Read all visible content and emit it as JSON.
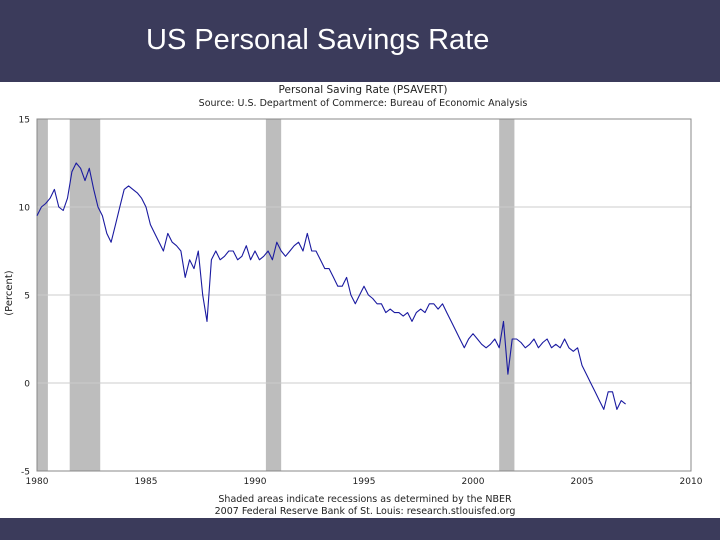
{
  "slide": {
    "title": "US Personal Savings Rate"
  },
  "colors": {
    "header_bar": "#3b3b5b",
    "background": "#b7cfe4",
    "series_line": "#1a1aa0",
    "recession_shading": "#bdbdbd",
    "grid": "#cccccc"
  },
  "chart_data": {
    "type": "line",
    "title": "Personal Saving Rate (PSAVERT)",
    "subtitle": "Source: U.S. Department of Commerce: Bureau of Economic Analysis",
    "xlabel": "",
    "ylabel": "(Percent)",
    "xlim": [
      1980,
      2010
    ],
    "ylim": [
      -5,
      15
    ],
    "x_ticks": [
      "1980",
      "1985",
      "1990",
      "1995",
      "2000",
      "2005",
      "2010"
    ],
    "y_ticks": [
      "15",
      "10",
      "5",
      "0",
      "-5"
    ],
    "grid": "horizontal",
    "recessions": [
      [
        1980.0,
        1980.5
      ],
      [
        1981.5,
        1982.9
      ],
      [
        1990.5,
        1991.2
      ],
      [
        2001.2,
        2001.9
      ]
    ],
    "footnotes": [
      "Shaded areas indicate recessions as determined by the NBER",
      "2007 Federal Reserve Bank of St. Louis: research.stlouisfed.org"
    ],
    "series": [
      {
        "x": [
          1980.0,
          1980.2,
          1980.4,
          1980.6,
          1980.8,
          1981.0,
          1981.2,
          1981.4,
          1981.6,
          1981.8,
          1982.0,
          1982.2,
          1982.4,
          1982.6,
          1982.8,
          1983.0,
          1983.2,
          1983.4,
          1983.6,
          1983.8,
          1984.0,
          1984.2,
          1984.4,
          1984.6,
          1984.8,
          1985.0,
          1985.2,
          1985.4,
          1985.6,
          1985.8,
          1986.0,
          1986.2,
          1986.4,
          1986.6,
          1986.8,
          1987.0,
          1987.2,
          1987.4,
          1987.6,
          1987.8,
          1988.0,
          1988.2,
          1988.4,
          1988.6,
          1988.8,
          1989.0,
          1989.2,
          1989.4,
          1989.6,
          1989.8,
          1990.0,
          1990.2,
          1990.4,
          1990.6,
          1990.8,
          1991.0,
          1991.2,
          1991.4,
          1991.6,
          1991.8,
          1992.0,
          1992.2,
          1992.4,
          1992.6,
          1992.8,
          1993.0,
          1993.2,
          1993.4,
          1993.6,
          1993.8,
          1994.0,
          1994.2,
          1994.4,
          1994.6,
          1994.8,
          1995.0,
          1995.2,
          1995.4,
          1995.6,
          1995.8,
          1996.0,
          1996.2,
          1996.4,
          1996.6,
          1996.8,
          1997.0,
          1997.2,
          1997.4,
          1997.6,
          1997.8,
          1998.0,
          1998.2,
          1998.4,
          1998.6,
          1998.8,
          1999.0,
          1999.2,
          1999.4,
          1999.6,
          1999.8,
          2000.0,
          2000.2,
          2000.4,
          2000.6,
          2000.8,
          2001.0,
          2001.2,
          2001.4,
          2001.6,
          2001.8,
          2002.0,
          2002.2,
          2002.4,
          2002.6,
          2002.8,
          2003.0,
          2003.2,
          2003.4,
          2003.6,
          2003.8,
          2004.0,
          2004.2,
          2004.4,
          2004.6,
          2004.8,
          2005.0,
          2005.2,
          2005.4,
          2005.6,
          2005.8,
          2006.0,
          2006.2,
          2006.4,
          2006.6,
          2006.8,
          2007.0
        ],
        "values": [
          9.5,
          10.0,
          10.2,
          10.5,
          11.0,
          10.0,
          9.8,
          10.5,
          12.0,
          12.5,
          12.2,
          11.5,
          12.2,
          11.0,
          10.0,
          9.5,
          8.5,
          8.0,
          9.0,
          10.0,
          11.0,
          11.2,
          11.0,
          10.8,
          10.5,
          10.0,
          9.0,
          8.5,
          8.0,
          7.5,
          8.5,
          8.0,
          7.8,
          7.5,
          6.0,
          7.0,
          6.5,
          7.5,
          5.0,
          3.5,
          7.0,
          7.5,
          7.0,
          7.2,
          7.5,
          7.5,
          7.0,
          7.2,
          7.8,
          7.0,
          7.5,
          7.0,
          7.2,
          7.5,
          7.0,
          8.0,
          7.5,
          7.2,
          7.5,
          7.8,
          8.0,
          7.5,
          8.5,
          7.5,
          7.5,
          7.0,
          6.5,
          6.5,
          6.0,
          5.5,
          5.5,
          6.0,
          5.0,
          4.5,
          5.0,
          5.5,
          5.0,
          4.8,
          4.5,
          4.5,
          4.0,
          4.2,
          4.0,
          4.0,
          3.8,
          4.0,
          3.5,
          4.0,
          4.2,
          4.0,
          4.5,
          4.5,
          4.2,
          4.5,
          4.0,
          3.5,
          3.0,
          2.5,
          2.0,
          2.5,
          2.8,
          2.5,
          2.2,
          2.0,
          2.2,
          2.5,
          2.0,
          3.5,
          0.5,
          2.5,
          2.5,
          2.3,
          2.0,
          2.2,
          2.5,
          2.0,
          2.3,
          2.5,
          2.0,
          2.2,
          2.0,
          2.5,
          2.0,
          1.8,
          2.0,
          1.0,
          0.5,
          0.0,
          -0.5,
          -1.0,
          -1.5,
          -0.5,
          -0.5,
          -1.5,
          -1.0,
          -1.2
        ]
      }
    ]
  }
}
